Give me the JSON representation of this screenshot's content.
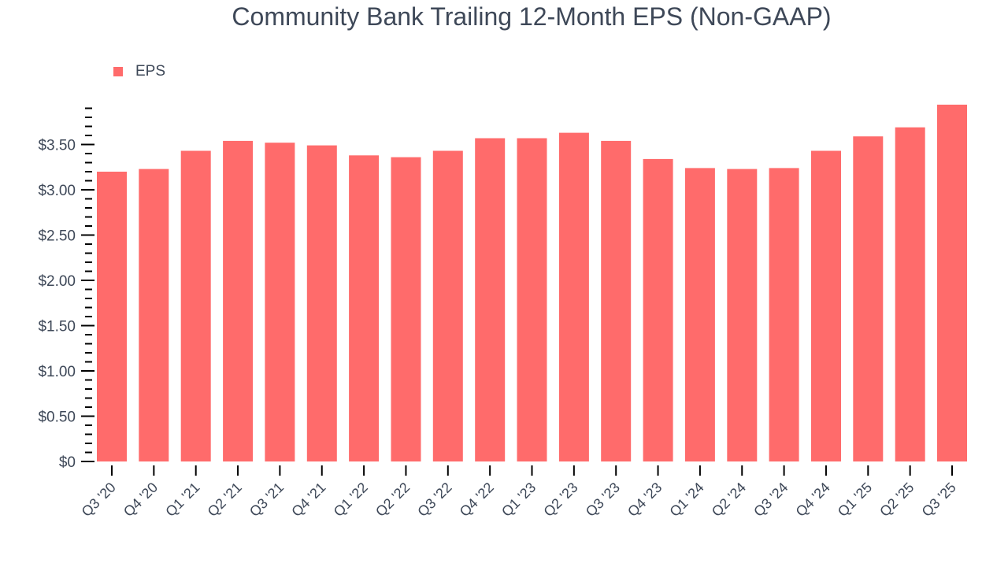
{
  "title": "Community Bank Trailing 12-Month EPS (Non-GAAP)",
  "legend": {
    "label": "EPS",
    "color": "#ff6b6b"
  },
  "colors": {
    "bar": "#ff6b6b",
    "text": "#3e4858",
    "axis": "#000000"
  },
  "chart_data": {
    "type": "bar",
    "title": "Community Bank Trailing 12-Month EPS (Non-GAAP)",
    "xlabel": "",
    "ylabel": "",
    "legend": [
      "EPS"
    ],
    "legend_position": "top-left",
    "grid": false,
    "ylim": [
      0,
      3.95
    ],
    "yticks": [
      0,
      0.5,
      1.0,
      1.5,
      2.0,
      2.5,
      3.0,
      3.5
    ],
    "ytick_labels": [
      "$0",
      "$0.50",
      "$1.00",
      "$1.50",
      "$2.00",
      "$2.50",
      "$3.00",
      "$3.50"
    ],
    "categories": [
      "Q3 '20",
      "Q4 '20",
      "Q1 '21",
      "Q2 '21",
      "Q3 '21",
      "Q4 '21",
      "Q1 '22",
      "Q2 '22",
      "Q3 '22",
      "Q4 '22",
      "Q1 '23",
      "Q2 '23",
      "Q3 '23",
      "Q4 '23",
      "Q1 '24",
      "Q2 '24",
      "Q3 '24",
      "Q4 '24",
      "Q1 '25",
      "Q2 '25",
      "Q3 '25"
    ],
    "series": [
      {
        "name": "EPS",
        "color": "#ff6b6b",
        "values": [
          3.2,
          3.23,
          3.43,
          3.54,
          3.52,
          3.49,
          3.38,
          3.36,
          3.43,
          3.57,
          3.57,
          3.63,
          3.54,
          3.34,
          3.24,
          3.23,
          3.24,
          3.43,
          3.59,
          3.69,
          3.94
        ]
      }
    ]
  }
}
